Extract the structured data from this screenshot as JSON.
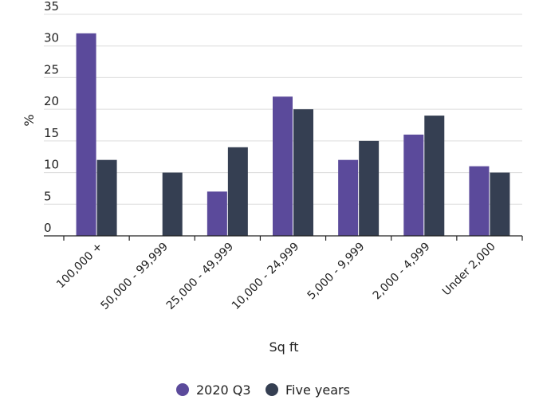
{
  "chart_data": {
    "type": "bar",
    "title": "",
    "xlabel": "Sq ft",
    "ylabel": "%",
    "ylim": [
      0,
      35
    ],
    "yticks": [
      0,
      5,
      10,
      15,
      20,
      25,
      30,
      35
    ],
    "grid": true,
    "legend_position": "bottom",
    "categories": [
      "100,000 +",
      "50,000 - 99,999",
      "25,000 - 49,999",
      "10,000 - 24,999",
      "5,000 - 9,999",
      "2,000 - 4,999",
      "Under 2,000"
    ],
    "series": [
      {
        "name": "2020 Q3",
        "color": "#5b4a9b",
        "values": [
          32,
          0,
          7,
          22,
          12,
          16,
          11
        ]
      },
      {
        "name": "Five years",
        "color": "#353f52",
        "values": [
          12,
          10,
          14,
          20,
          15,
          19,
          10
        ]
      }
    ]
  }
}
